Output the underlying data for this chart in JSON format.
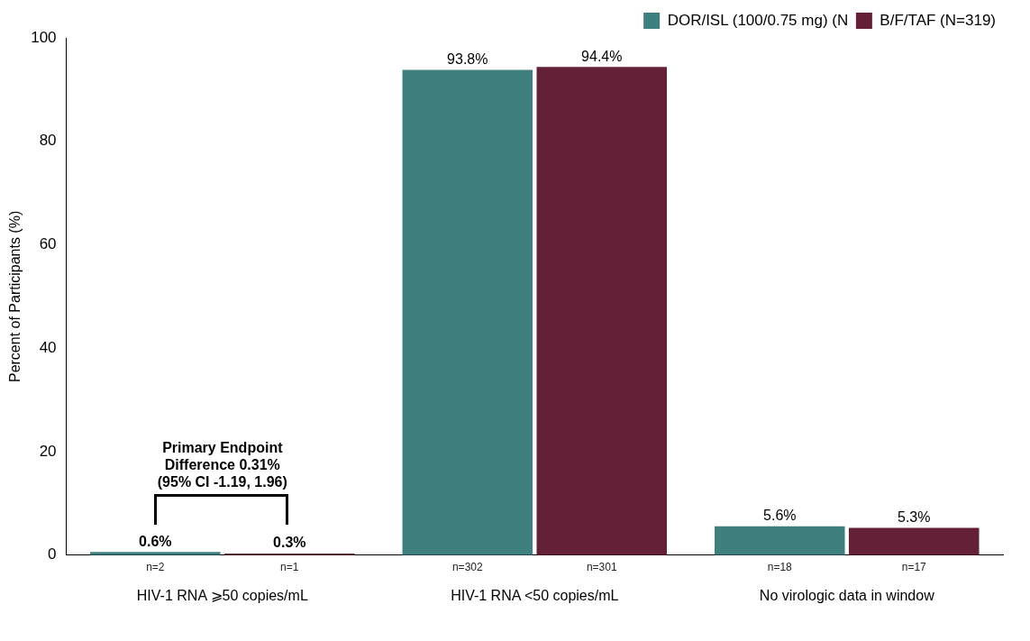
{
  "chart_data": {
    "type": "bar",
    "ylabel": "Percent of Participants (%)",
    "categories": [
      "HIV-1 RNA ⩾50 copies/mL",
      "HIV-1 RNA <50 copies/mL",
      "No virologic data in window"
    ],
    "series": [
      {
        "name": "DOR/ISL (100/0.75 mg) (N",
        "color": "#3f7f7e",
        "values": [
          0.6,
          93.8,
          5.6
        ],
        "value_labels": [
          "0.6%",
          "93.8%",
          "5.6%"
        ]
      },
      {
        "name": "B/F/TAF (N=319)",
        "color": "#632036",
        "values": [
          0.3,
          94.4,
          5.3
        ],
        "value_labels": [
          "0.3%",
          "94.4%",
          "5.3%"
        ]
      }
    ],
    "ylim": [
      0,
      100
    ],
    "yticks": [
      0,
      20,
      40,
      60,
      80,
      100
    ],
    "grid": false,
    "legend": "top right",
    "annotations": [
      "Primary Endpoint\nDifference 0.31%\n(95% CI -1.19, 1.96)",
      "n=2",
      "n=1",
      "n=302",
      "n=301",
      "n=18",
      "n=17"
    ]
  }
}
